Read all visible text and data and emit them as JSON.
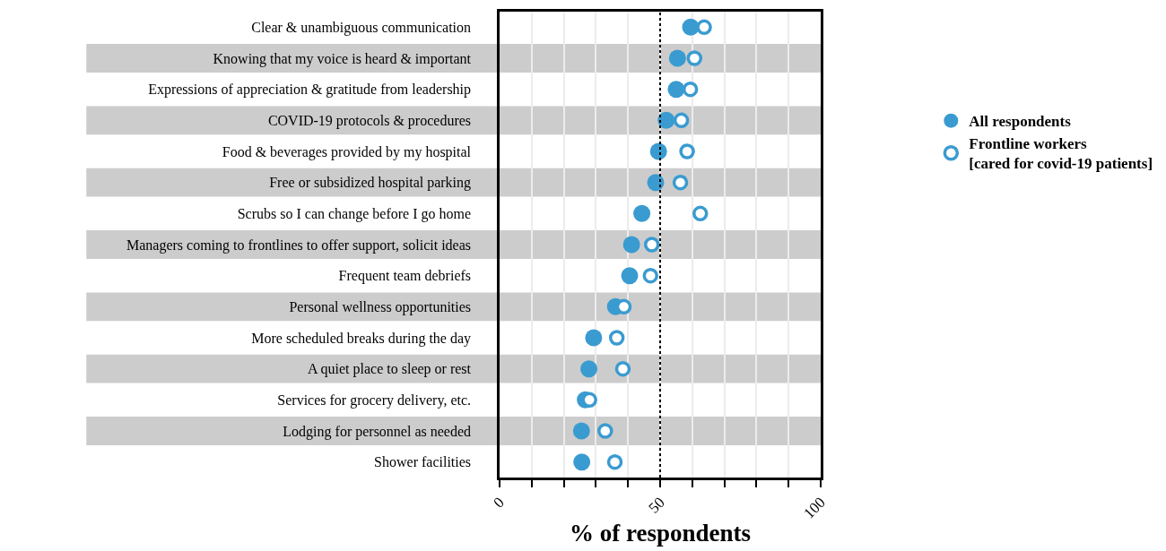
{
  "chart_data": {
    "type": "scatter",
    "categories": [
      "Clear & unambiguous communication",
      "Knowing that my voice is heard & important",
      "Expressions of appreciation & gratitude from leadership",
      "COVID-19 protocols & procedures",
      "Food & beverages provided by my hospital",
      "Free or subsidized hospital parking",
      "Scrubs so I can change before I go home",
      "Managers coming to frontlines to offer support, solicit ideas",
      "Frequent team debriefs",
      "Personal wellness opportunities",
      "More scheduled breaks during the day",
      "A quiet place to sleep or rest",
      "Services for grocery delivery, etc.",
      "Lodging for personnel as needed",
      "Shower facilities"
    ],
    "series": [
      {
        "name": "All respondents",
        "color": "#3a9bd0",
        "values": [
          59.5,
          55.4,
          55.0,
          51.9,
          49.5,
          48.6,
          44.3,
          41.1,
          40.5,
          36.1,
          29.3,
          27.8,
          26.7,
          25.5,
          25.6
        ]
      },
      {
        "name": "Frontline workers\n[cared for covid-19 patients]",
        "color": "#3a9bd0",
        "values": [
          63.7,
          60.7,
          59.4,
          56.6,
          58.4,
          56.3,
          62.5,
          47.4,
          47.0,
          38.7,
          36.5,
          38.4,
          28.0,
          32.9,
          35.9
        ]
      }
    ],
    "orientation": "horizontal",
    "xlabel": "% of respondents",
    "xlim": [
      0,
      100
    ],
    "xticks": [
      0,
      {
        "value": 10,
        "label": null
      },
      {
        "value": 20,
        "label": null
      },
      {
        "value": 30,
        "label": null
      },
      {
        "value": 40,
        "label": null
      },
      50,
      {
        "value": 60,
        "label": null
      },
      {
        "value": 70,
        "label": null
      },
      {
        "value": 80,
        "label": null
      },
      {
        "value": 90,
        "label": null
      },
      100
    ],
    "ref_lines": [
      {
        "axis": "x",
        "value": 50,
        "label": null,
        "color": "#000000",
        "line_style": "dotted"
      }
    ],
    "grid": "x",
    "legend": "right",
    "marker": "circle"
  }
}
